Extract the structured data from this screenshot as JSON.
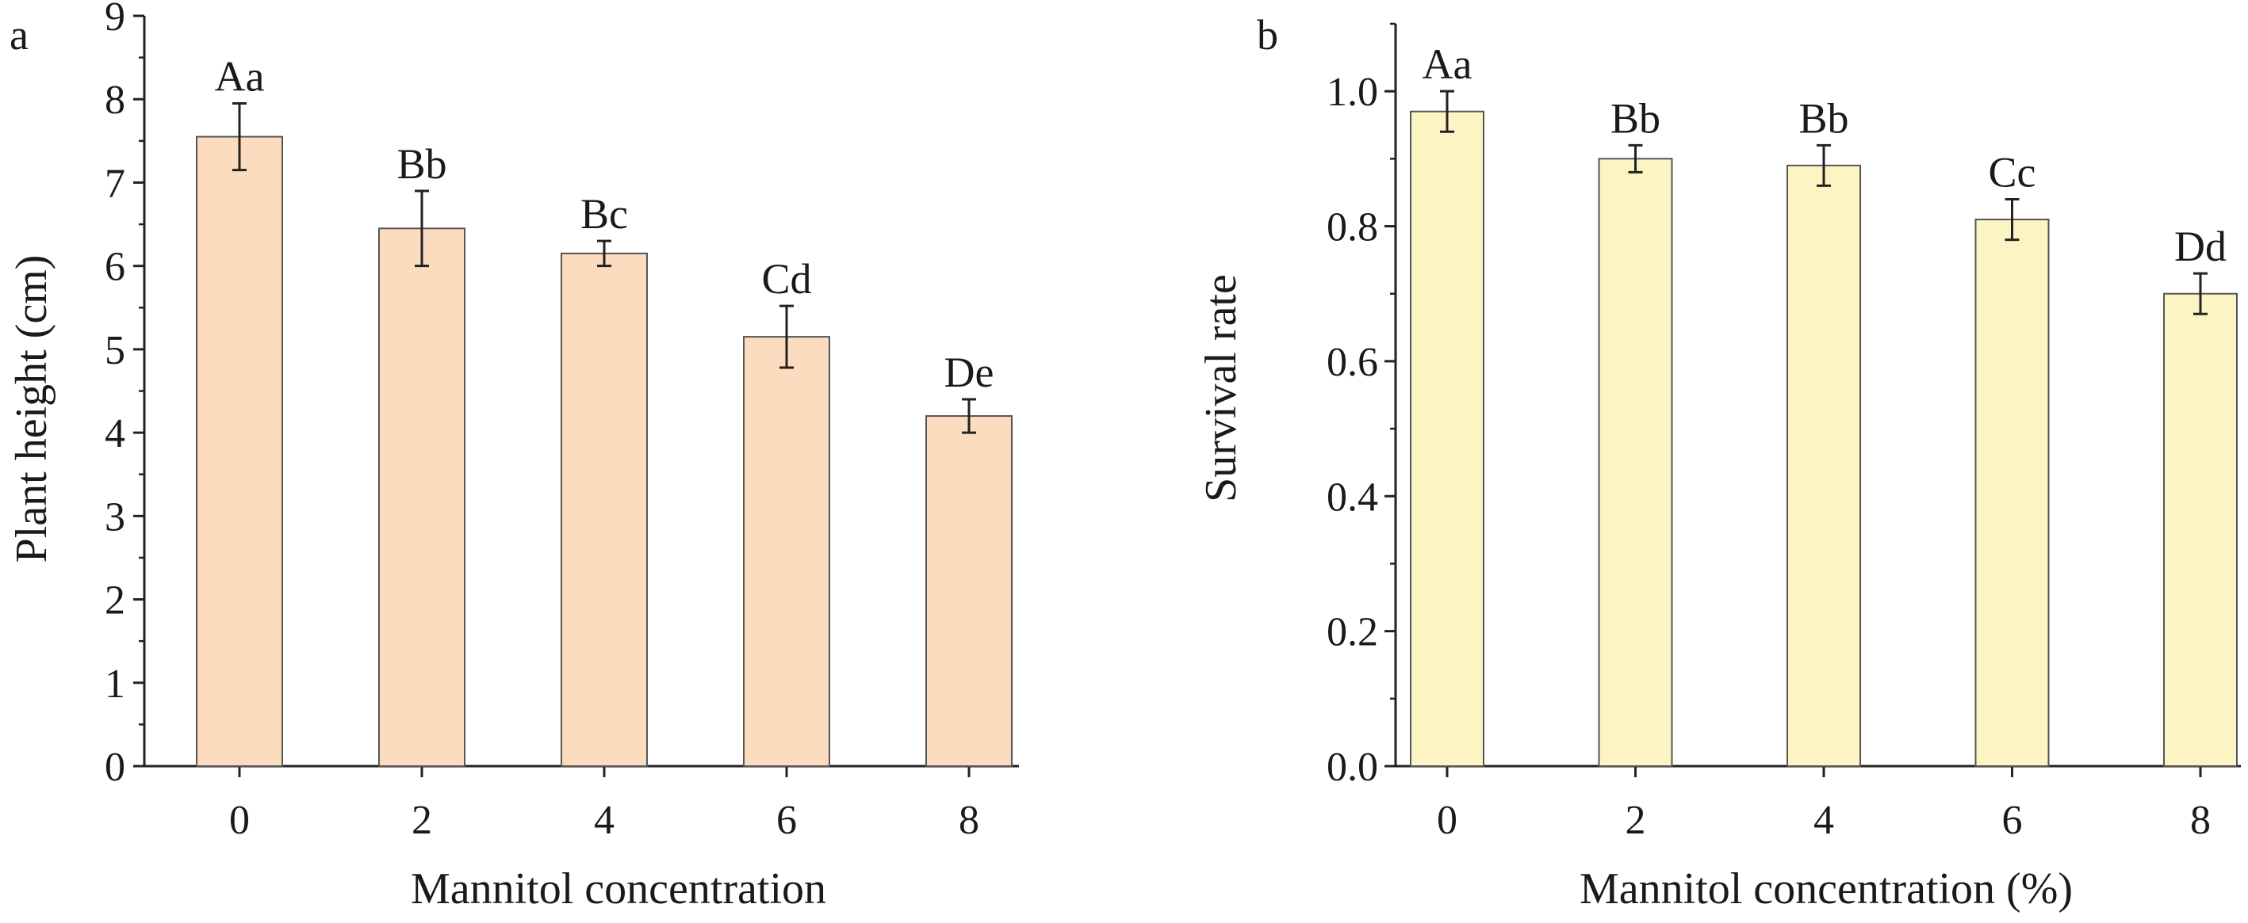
{
  "chart_data": [
    {
      "panel": "a",
      "type": "bar",
      "categories": [
        "0",
        "2",
        "4",
        "6",
        "8"
      ],
      "values": [
        7.55,
        6.45,
        6.15,
        5.15,
        4.2
      ],
      "errors": [
        0.4,
        0.45,
        0.15,
        0.37,
        0.2
      ],
      "labels": [
        "Aa",
        "Bb",
        "Bc",
        "Cd",
        "De"
      ],
      "xlabel": "Mannitol concentration",
      "ylabel": "Plant height (cm)",
      "ylim": [
        0,
        9
      ],
      "yticks": [
        "0",
        "1",
        "2",
        "3",
        "4",
        "5",
        "6",
        "7",
        "8",
        "9"
      ],
      "bar_color": "#fcdcbf",
      "grid": false
    },
    {
      "panel": "b",
      "type": "bar",
      "categories": [
        "0",
        "2",
        "4",
        "6",
        "8"
      ],
      "values": [
        0.97,
        0.9,
        0.89,
        0.81,
        0.7
      ],
      "errors": [
        0.03,
        0.02,
        0.03,
        0.03,
        0.03
      ],
      "labels": [
        "Aa",
        "Bb",
        "Bb",
        "Cc",
        "Dd"
      ],
      "xlabel": "Mannitol concentration (%)",
      "ylabel": "Survival rate",
      "ylim": [
        0,
        1.1
      ],
      "yticks": [
        "0.0",
        "0.2",
        "0.4",
        "0.6",
        "0.8",
        "1.0"
      ],
      "bar_color": "#fdf4c4",
      "grid": false
    }
  ]
}
